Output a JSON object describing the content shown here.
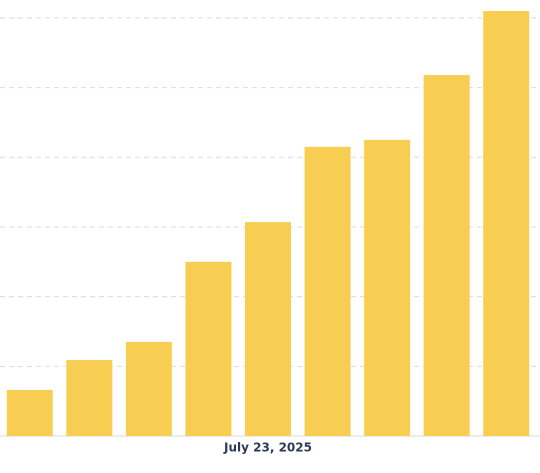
{
  "chart_data": {
    "type": "bar",
    "categories": [
      null,
      null,
      null,
      null,
      "July 23, 2025",
      null,
      null,
      null,
      null
    ],
    "values": [
      0.66,
      1.09,
      1.35,
      2.5,
      3.07,
      4.15,
      4.25,
      5.18,
      6.1
    ],
    "color": "#f7cd52",
    "ylim": [
      0,
      6.2
    ],
    "yticks": [
      0,
      1,
      2,
      3,
      4,
      5,
      6
    ],
    "grid": true
  }
}
